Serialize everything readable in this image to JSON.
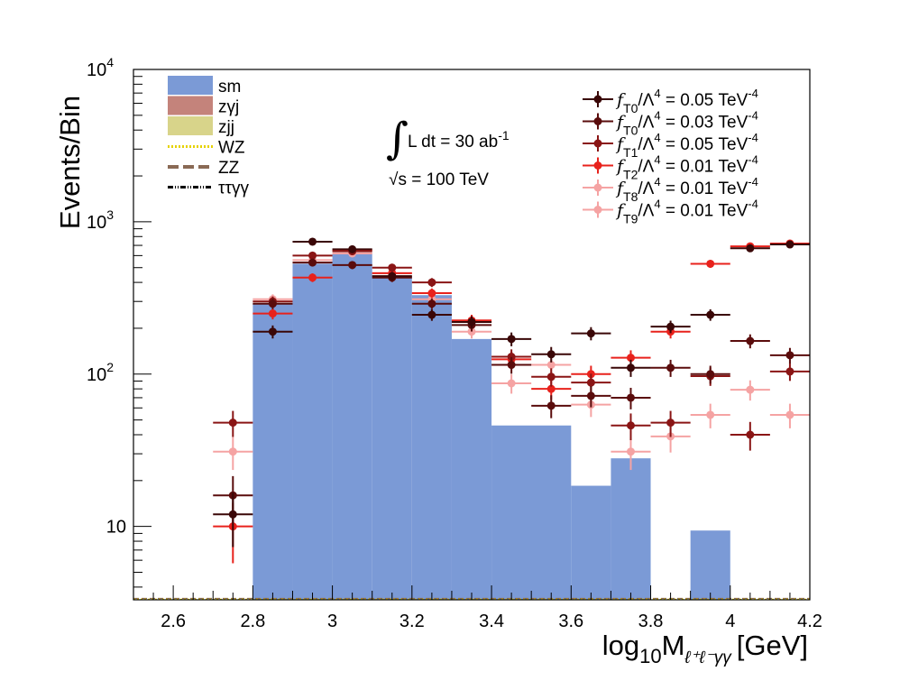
{
  "chart_data": {
    "type": "histogram",
    "xlabel": "log10 M_{l+l-γγ} [GeV]",
    "xlabel_parts": {
      "base": "log",
      "base_sub": "10",
      "var": "M",
      "var_sub": "ℓ⁺ℓ⁻γγ",
      "unit": "[GeV]"
    },
    "ylabel": "Events/Bin",
    "xlim": [
      2.5,
      4.2
    ],
    "ylim": [
      3.3,
      10000
    ],
    "yscale": "log",
    "x_ticks": [
      2.6,
      2.8,
      3.0,
      3.2,
      3.4,
      3.6,
      3.8,
      4.0,
      4.2
    ],
    "x_tick_labels": [
      "2.6",
      "2.8",
      "3",
      "3.2",
      "3.4",
      "3.6",
      "3.8",
      "4",
      "4.2"
    ],
    "y_ticks": [
      10,
      100,
      1000,
      10000
    ],
    "y_tick_labels": [
      {
        "base": "10",
        "exp": ""
      },
      {
        "base": "10",
        "exp": "2"
      },
      {
        "base": "10",
        "exp": "3"
      },
      {
        "base": "10",
        "exp": "4"
      }
    ],
    "bin_width": 0.1,
    "background_stack": {
      "name": "sm",
      "color": "#7b9ad6",
      "bins": [
        {
          "lo": 2.8,
          "hi": 2.9,
          "value": 290
        },
        {
          "lo": 2.9,
          "hi": 3.0,
          "value": 530
        },
        {
          "lo": 3.0,
          "hi": 3.1,
          "value": 620
        },
        {
          "lo": 3.1,
          "hi": 3.2,
          "value": 440
        },
        {
          "lo": 3.2,
          "hi": 3.3,
          "value": 330
        },
        {
          "lo": 3.3,
          "hi": 3.4,
          "value": 170
        },
        {
          "lo": 3.4,
          "hi": 3.6,
          "value": 46
        },
        {
          "lo": 3.6,
          "hi": 3.7,
          "value": 18.5
        },
        {
          "lo": 3.7,
          "hi": 3.8,
          "value": 28
        },
        {
          "lo": 3.9,
          "hi": 4.0,
          "value": 9.4
        }
      ]
    },
    "signals": [
      {
        "name": "fT0/Λ4 = 0.05 TeV-4",
        "color": "#3a0707",
        "points": [
          {
            "x": 2.75,
            "y": 12
          },
          {
            "x": 2.85,
            "y": 190
          },
          {
            "x": 2.95,
            "y": 740
          },
          {
            "x": 3.05,
            "y": 660
          },
          {
            "x": 3.15,
            "y": 440
          },
          {
            "x": 3.25,
            "y": 245
          },
          {
            "x": 3.35,
            "y": 220
          },
          {
            "x": 3.45,
            "y": 170
          },
          {
            "x": 3.55,
            "y": 135
          },
          {
            "x": 3.65,
            "y": 185
          },
          {
            "x": 3.75,
            "y": 110
          },
          {
            "x": 3.85,
            "y": 205
          },
          {
            "x": 3.95,
            "y": 245
          },
          {
            "x": 4.05,
            "y": 670
          },
          {
            "x": 4.15,
            "y": 710
          }
        ]
      },
      {
        "name": "fT0/Λ4 = 0.03 TeV-4",
        "color": "#5a0c0c",
        "points": [
          {
            "x": 2.75,
            "y": 16
          },
          {
            "x": 2.85,
            "y": 290
          },
          {
            "x": 2.95,
            "y": 540
          },
          {
            "x": 3.05,
            "y": 520
          },
          {
            "x": 3.15,
            "y": 430
          },
          {
            "x": 3.25,
            "y": 290
          },
          {
            "x": 3.35,
            "y": 210
          },
          {
            "x": 3.45,
            "y": 115
          },
          {
            "x": 3.55,
            "y": 62
          },
          {
            "x": 3.65,
            "y": 72
          },
          {
            "x": 3.75,
            "y": 70
          },
          {
            "x": 3.85,
            "y": 110
          },
          {
            "x": 3.95,
            "y": 100
          },
          {
            "x": 4.05,
            "y": 165
          },
          {
            "x": 4.15,
            "y": 133
          }
        ]
      },
      {
        "name": "fT1/Λ4 = 0.05 TeV-4",
        "color": "#8a1515",
        "points": [
          {
            "x": 2.75,
            "y": 48
          },
          {
            "x": 2.85,
            "y": 300
          },
          {
            "x": 2.95,
            "y": 600
          },
          {
            "x": 3.05,
            "y": 640
          },
          {
            "x": 3.15,
            "y": 500
          },
          {
            "x": 3.25,
            "y": 400
          },
          {
            "x": 3.35,
            "y": 220
          },
          {
            "x": 3.45,
            "y": 130
          },
          {
            "x": 3.55,
            "y": 96
          },
          {
            "x": 3.65,
            "y": 88
          },
          {
            "x": 3.75,
            "y": 46
          },
          {
            "x": 3.85,
            "y": 48
          },
          {
            "x": 3.95,
            "y": 97
          },
          {
            "x": 4.05,
            "y": 40
          },
          {
            "x": 4.15,
            "y": 104
          }
        ]
      },
      {
        "name": "fT2/Λ4 = 0.01 TeV-4",
        "color": "#e8221c",
        "points": [
          {
            "x": 2.75,
            "y": 10
          },
          {
            "x": 2.85,
            "y": 250
          },
          {
            "x": 2.95,
            "y": 430
          },
          {
            "x": 3.05,
            "y": 650
          },
          {
            "x": 3.15,
            "y": 460
          },
          {
            "x": 3.25,
            "y": 340
          },
          {
            "x": 3.35,
            "y": 225
          },
          {
            "x": 3.45,
            "y": 125
          },
          {
            "x": 3.55,
            "y": 80
          },
          {
            "x": 3.65,
            "y": 100
          },
          {
            "x": 3.75,
            "y": 128
          },
          {
            "x": 3.85,
            "y": 190
          },
          {
            "x": 3.95,
            "y": 530
          },
          {
            "x": 4.05,
            "y": 690
          },
          {
            "x": 4.15,
            "y": 720
          }
        ]
      },
      {
        "name": "fT8/Λ4 = 0.01 TeV-4",
        "color": "#f5a3a3",
        "points": [
          {
            "x": 2.75,
            "y": 31
          },
          {
            "x": 2.85,
            "y": 310
          },
          {
            "x": 2.95,
            "y": 560
          },
          {
            "x": 3.05,
            "y": 620
          },
          {
            "x": 3.15,
            "y": 460
          },
          {
            "x": 3.25,
            "y": 310
          },
          {
            "x": 3.35,
            "y": 190
          },
          {
            "x": 3.45,
            "y": 87
          },
          {
            "x": 3.55,
            "y": 115
          },
          {
            "x": 3.65,
            "y": 63
          },
          {
            "x": 3.75,
            "y": 31
          },
          {
            "x": 3.85,
            "y": 39
          },
          {
            "x": 3.95,
            "y": 54
          },
          {
            "x": 4.05,
            "y": 79
          },
          {
            "x": 4.15,
            "y": 54
          }
        ]
      }
    ],
    "legend_left": [
      {
        "label": "sm",
        "style": "fill",
        "color": "#7b9ad6"
      },
      {
        "label": "zγj",
        "style": "fill",
        "color": "#c4837b"
      },
      {
        "label": "zjj",
        "style": "fill",
        "color": "#d8d48a"
      },
      {
        "label": "WZ",
        "style": "dotted",
        "color": "#e6d200"
      },
      {
        "label": "ZZ",
        "style": "dashed",
        "color": "#8a6a55"
      },
      {
        "label": "ττγγ",
        "style": "dashdot",
        "color": "#000000"
      }
    ],
    "legend_right": [
      {
        "coupling": "T0",
        "rest": "/Λ",
        "power": "4",
        "value": " = 0.05 TeV",
        "unit_exp": "-4",
        "color": "#3a0707"
      },
      {
        "coupling": "T0",
        "rest": "/Λ",
        "power": "4",
        "value": " = 0.03 TeV",
        "unit_exp": "-4",
        "color": "#5a0c0c"
      },
      {
        "coupling": "T1",
        "rest": "/Λ",
        "power": "4",
        "value": " = 0.05 TeV",
        "unit_exp": "-4",
        "color": "#8a1515"
      },
      {
        "coupling": "T2",
        "rest": "/Λ",
        "power": "4",
        "value": " = 0.01 TeV",
        "unit_exp": "-4",
        "color": "#e8221c"
      },
      {
        "coupling": "T8",
        "rest": "/Λ",
        "power": "4",
        "value": " = 0.01 TeV",
        "unit_exp": "-4",
        "color": "#f5a3a3"
      },
      {
        "coupling": "T9",
        "rest": "/Λ",
        "power": "4",
        "value": " = 0.01 TeV",
        "unit_exp": "-4",
        "color": "#f5a3a3"
      }
    ],
    "annotations": {
      "lumi_text": "L dt = 30 ab",
      "lumi_exp": "-1",
      "energy_text": "s = 100 TeV",
      "sqrt_symbol": "√",
      "integral_symbol": "∫"
    }
  }
}
